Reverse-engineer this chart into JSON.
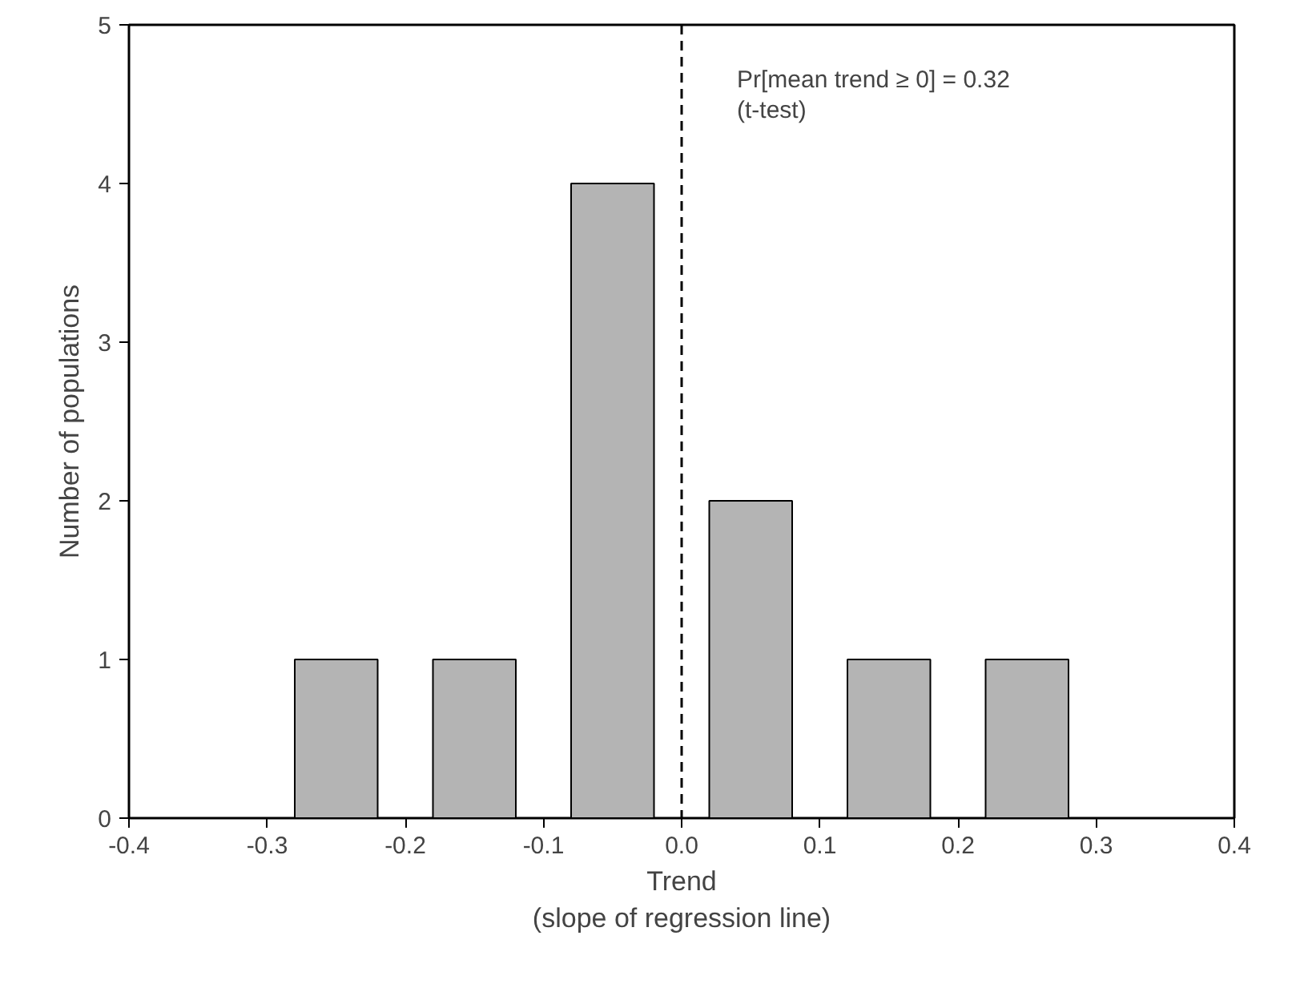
{
  "chart_data": {
    "type": "bar",
    "xlabel": "Trend\n(slope of regression line)",
    "ylabel": "Number of populations",
    "x": [
      -0.25,
      -0.15,
      -0.05,
      0.05,
      0.15,
      0.25
    ],
    "values": [
      1,
      1,
      4,
      2,
      1,
      1
    ],
    "color": "#b4b4b4",
    "xlim": [
      -0.4,
      0.4
    ],
    "xticks": [
      -0.4,
      -0.3,
      -0.2,
      -0.1,
      {
        "value": 0,
        "label": "0.0"
      },
      0.1,
      0.2,
      0.3,
      0.4
    ],
    "ylim": [
      0,
      5
    ],
    "yticks": [
      0,
      1,
      2,
      3,
      4,
      5
    ],
    "ref_lines": [
      {
        "axis": "x",
        "value": 0,
        "line_style": "dashed",
        "color": "#000000"
      }
    ],
    "annotations": [
      "Pr[mean trend ≥ 0] = 0.32\n(t-test)"
    ],
    "grid": false
  }
}
